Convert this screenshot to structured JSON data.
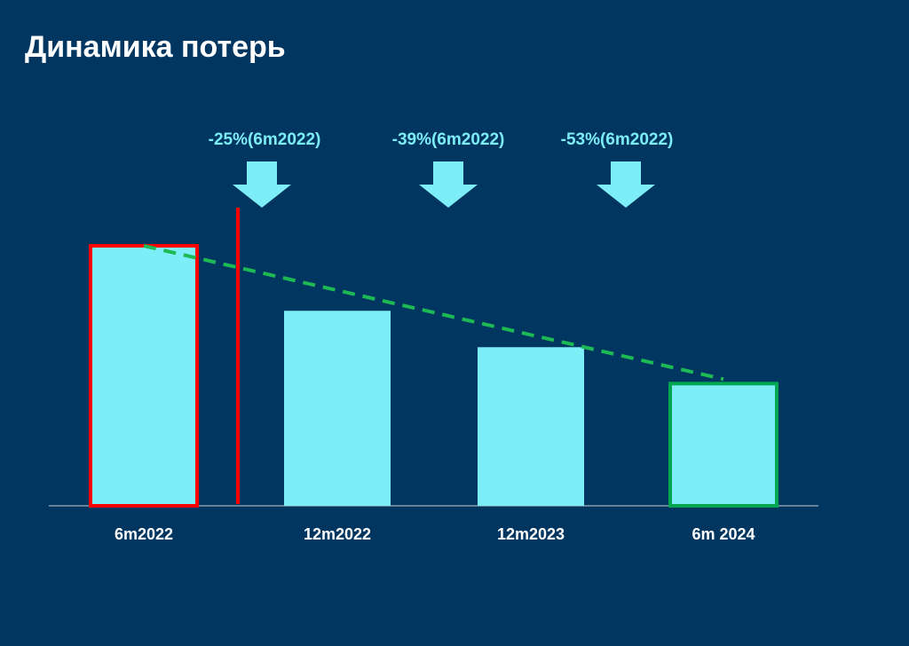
{
  "chart_data": {
    "type": "bar",
    "title": "Динамика потерь",
    "categories": [
      "6m2022",
      "12m2022",
      "12m2023",
      "6m 2024"
    ],
    "values": [
      100,
      75,
      61,
      47
    ],
    "color": "#7dedf8",
    "edge_colors": [
      "#ff0000",
      null,
      null,
      "#00a650"
    ],
    "trend_line": {
      "color": "#1db954",
      "style": "dashed"
    },
    "annotations": [
      "-25%(6m2022)",
      "-39%(6m2022)",
      "-53%(6m2022)"
    ]
  }
}
